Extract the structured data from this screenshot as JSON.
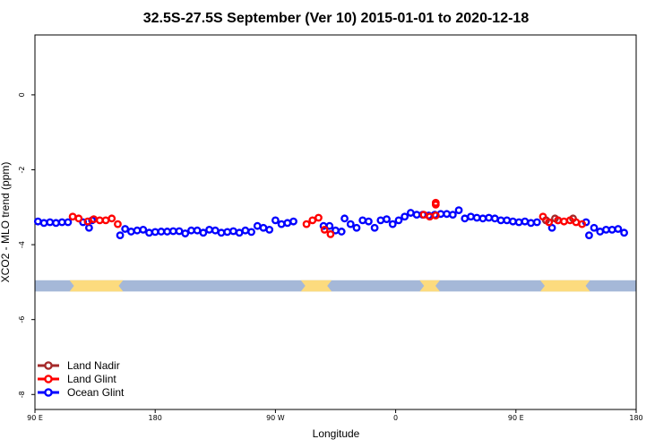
{
  "chart_data": {
    "type": "scatter",
    "title": "32.5S-27.5S September (Ver 10)   2015-01-01 to 2020-12-18",
    "xlabel": "Longitude",
    "ylabel": "XCO2 - MLO trend (ppm)",
    "xlim": [
      90,
      450
    ],
    "ylim": [
      -8.4,
      1.6
    ],
    "x_ticks": [
      {
        "value": 90,
        "label": "90 E"
      },
      {
        "value": 162,
        "label": "180"
      },
      {
        "value": 234,
        "label": "90 W"
      },
      {
        "value": 306,
        "label": "0"
      },
      {
        "value": 378,
        "label": "90 E"
      },
      {
        "value": 450,
        "label": "180"
      }
    ],
    "y_ticks": [
      {
        "value": 0,
        "label": "0"
      },
      {
        "value": -2,
        "label": "-2"
      },
      {
        "value": -4,
        "label": "-4"
      },
      {
        "value": -6,
        "label": "-6"
      },
      {
        "value": -8,
        "label": "-8"
      }
    ],
    "land_band": {
      "y_range": [
        -5.25,
        -4.95
      ],
      "ocean_color": "#A5B8D8",
      "land_color": "#FCDB7E",
      "land_segments": [
        [
          110.7,
          142.8
        ],
        [
          249.2,
          267.7
        ],
        [
          320.3,
          332.5
        ],
        [
          392.6,
          422.4
        ]
      ]
    },
    "series": [
      {
        "name": "Land Nadir",
        "color": "#A52A2A",
        "points": [
          [
            396.0,
            -3.35
          ],
          [
            401.4,
            -3.3
          ],
          [
            412.2,
            -3.3
          ]
        ]
      },
      {
        "name": "Land Glint",
        "color": "#FF0000",
        "points": [
          [
            112.6,
            -3.25
          ],
          [
            116.2,
            -3.3
          ],
          [
            121.6,
            -3.38
          ],
          [
            125.2,
            -3.32
          ],
          [
            128.8,
            -3.35
          ],
          [
            132.4,
            -3.35
          ],
          [
            136.0,
            -3.3
          ],
          [
            139.6,
            -3.45
          ],
          [
            252.6,
            -3.45
          ],
          [
            256.2,
            -3.35
          ],
          [
            259.8,
            -3.28
          ],
          [
            263.4,
            -3.6
          ],
          [
            267.0,
            -3.72
          ],
          [
            322.8,
            -3.2
          ],
          [
            326.4,
            -3.25
          ],
          [
            330.0,
            -3.22
          ],
          [
            330.0,
            -2.88
          ],
          [
            330.0,
            -2.93
          ],
          [
            394.2,
            -3.25
          ],
          [
            397.8,
            -3.4
          ],
          [
            403.2,
            -3.35
          ],
          [
            406.8,
            -3.38
          ],
          [
            410.4,
            -3.35
          ],
          [
            414.0,
            -3.4
          ],
          [
            417.6,
            -3.45
          ]
        ]
      },
      {
        "name": "Ocean Glint",
        "color": "#0000FF",
        "points": [
          [
            91.8,
            -3.38
          ],
          [
            95.4,
            -3.42
          ],
          [
            99.0,
            -3.4
          ],
          [
            102.6,
            -3.42
          ],
          [
            106.2,
            -3.4
          ],
          [
            109.8,
            -3.4
          ],
          [
            118.8,
            -3.4
          ],
          [
            122.4,
            -3.55
          ],
          [
            124.2,
            -3.35
          ],
          [
            141.0,
            -3.75
          ],
          [
            144.0,
            -3.58
          ],
          [
            147.6,
            -3.65
          ],
          [
            151.2,
            -3.62
          ],
          [
            154.8,
            -3.6
          ],
          [
            158.4,
            -3.68
          ],
          [
            162.0,
            -3.66
          ],
          [
            165.6,
            -3.65
          ],
          [
            169.2,
            -3.65
          ],
          [
            172.8,
            -3.64
          ],
          [
            176.4,
            -3.64
          ],
          [
            180.0,
            -3.7
          ],
          [
            183.6,
            -3.62
          ],
          [
            187.2,
            -3.62
          ],
          [
            190.8,
            -3.68
          ],
          [
            194.4,
            -3.6
          ],
          [
            198.0,
            -3.62
          ],
          [
            201.6,
            -3.68
          ],
          [
            205.2,
            -3.66
          ],
          [
            208.8,
            -3.64
          ],
          [
            212.4,
            -3.68
          ],
          [
            216.0,
            -3.62
          ],
          [
            219.6,
            -3.66
          ],
          [
            223.2,
            -3.5
          ],
          [
            226.8,
            -3.55
          ],
          [
            230.4,
            -3.6
          ],
          [
            234.0,
            -3.35
          ],
          [
            237.6,
            -3.45
          ],
          [
            241.2,
            -3.42
          ],
          [
            244.8,
            -3.38
          ],
          [
            262.8,
            -3.5
          ],
          [
            266.4,
            -3.5
          ],
          [
            270.0,
            -3.62
          ],
          [
            273.6,
            -3.65
          ],
          [
            275.4,
            -3.3
          ],
          [
            279.0,
            -3.45
          ],
          [
            282.6,
            -3.55
          ],
          [
            286.2,
            -3.35
          ],
          [
            289.8,
            -3.38
          ],
          [
            293.4,
            -3.55
          ],
          [
            297.0,
            -3.35
          ],
          [
            300.6,
            -3.32
          ],
          [
            304.2,
            -3.45
          ],
          [
            307.8,
            -3.35
          ],
          [
            311.4,
            -3.25
          ],
          [
            315.0,
            -3.15
          ],
          [
            318.6,
            -3.2
          ],
          [
            322.2,
            -3.2
          ],
          [
            325.8,
            -3.22
          ],
          [
            329.4,
            -3.2
          ],
          [
            333.0,
            -3.18
          ],
          [
            336.6,
            -3.18
          ],
          [
            340.2,
            -3.2
          ],
          [
            343.8,
            -3.08
          ],
          [
            347.4,
            -3.3
          ],
          [
            351.0,
            -3.25
          ],
          [
            354.6,
            -3.28
          ],
          [
            358.2,
            -3.3
          ],
          [
            361.8,
            -3.28
          ],
          [
            365.4,
            -3.3
          ],
          [
            369.0,
            -3.35
          ],
          [
            372.6,
            -3.35
          ],
          [
            376.2,
            -3.38
          ],
          [
            379.8,
            -3.4
          ],
          [
            383.4,
            -3.38
          ],
          [
            387.0,
            -3.42
          ],
          [
            390.6,
            -3.4
          ],
          [
            396.0,
            -3.35
          ],
          [
            399.6,
            -3.55
          ],
          [
            403.2,
            -3.35
          ],
          [
            420.0,
            -3.4
          ],
          [
            421.8,
            -3.75
          ],
          [
            424.8,
            -3.55
          ],
          [
            428.4,
            -3.65
          ],
          [
            432.0,
            -3.6
          ],
          [
            435.6,
            -3.6
          ],
          [
            439.2,
            -3.58
          ],
          [
            442.8,
            -3.68
          ]
        ]
      }
    ],
    "legend": {
      "placement": "bottom-left",
      "entries": [
        "Land Nadir",
        "Land Glint",
        "Ocean Glint"
      ]
    }
  }
}
